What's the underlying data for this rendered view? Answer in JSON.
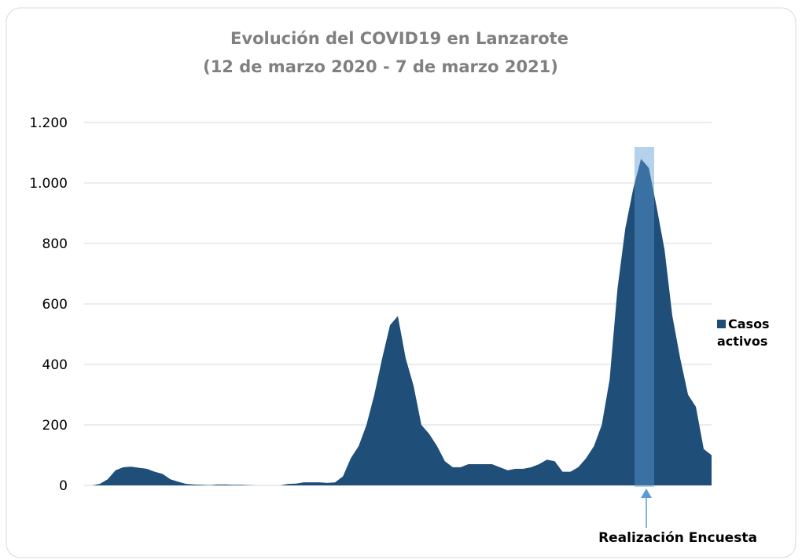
{
  "chart_data": {
    "type": "area",
    "title": "Evolución del COVID19 en Lanzarote",
    "subtitle": "(12 de marzo 2020 - 7 de marzo 2021)",
    "series": [
      {
        "name": "Casos activos",
        "color": "#1f4e79",
        "values": [
          0,
          0,
          5,
          20,
          50,
          60,
          62,
          58,
          55,
          45,
          38,
          20,
          12,
          5,
          3,
          2,
          1,
          3,
          3,
          2,
          2,
          1,
          0,
          0,
          0,
          0,
          5,
          6,
          10,
          10,
          10,
          8,
          10,
          30,
          90,
          130,
          200,
          300,
          420,
          530,
          560,
          420,
          330,
          200,
          170,
          130,
          80,
          60,
          60,
          70,
          70,
          70,
          70,
          60,
          50,
          55,
          55,
          60,
          70,
          85,
          80,
          45,
          45,
          60,
          90,
          130,
          200,
          350,
          650,
          850,
          980,
          1080,
          1050,
          920,
          780,
          560,
          420,
          300,
          260,
          120,
          100
        ]
      }
    ],
    "ylim": [
      0,
      1200
    ],
    "yticks": [
      0,
      200,
      400,
      600,
      800,
      {
        "value": 1000,
        "label": "1.000"
      },
      {
        "value": 1200,
        "label": "1.200"
      }
    ],
    "grid": true,
    "legend": "right",
    "annotation": "Realización Encuesta"
  }
}
